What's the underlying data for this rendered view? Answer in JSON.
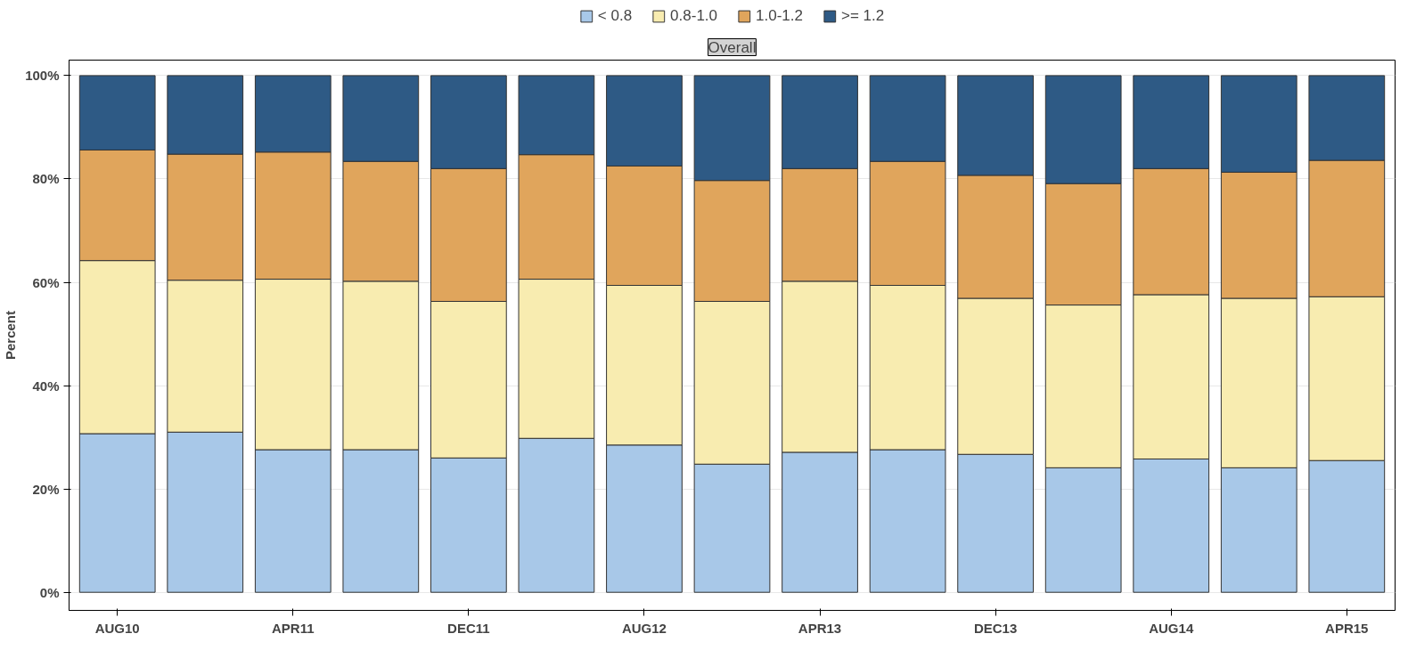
{
  "chart_data": {
    "type": "bar",
    "stacked": true,
    "subtitle": "Overall",
    "ylabel": "Percent",
    "categories": [
      "AUG10",
      null,
      "APR11",
      null,
      "DEC11",
      null,
      "AUG12",
      null,
      "APR13",
      null,
      "DEC13",
      null,
      "AUG14",
      null,
      "APR15"
    ],
    "series": [
      {
        "name": "< 0.8",
        "color": "#a8c8e8",
        "values": [
          30.7,
          31.0,
          27.6,
          27.6,
          26.0,
          29.8,
          28.5,
          24.8,
          27.1,
          27.6,
          26.7,
          24.1,
          25.8,
          24.1,
          25.5
        ]
      },
      {
        "name": "0.8-1.0",
        "color": "#f8ecb0",
        "values": [
          33.5,
          29.4,
          33.0,
          32.6,
          30.3,
          30.8,
          30.9,
          31.5,
          33.1,
          31.8,
          30.2,
          31.5,
          31.8,
          32.8,
          31.7
        ]
      },
      {
        "name": "1.0-1.2",
        "color": "#e0a55c",
        "values": [
          21.4,
          24.4,
          24.6,
          23.2,
          25.7,
          24.1,
          23.1,
          23.4,
          21.8,
          24.0,
          23.8,
          23.5,
          24.4,
          24.4,
          26.4
        ]
      },
      {
        "name": ">= 1.2",
        "color": "#2e5a85",
        "values": [
          14.4,
          15.2,
          14.8,
          16.6,
          18.0,
          15.3,
          17.5,
          20.3,
          18.0,
          16.6,
          19.3,
          20.9,
          18.0,
          18.7,
          16.4
        ]
      }
    ],
    "ylim": [
      -3.5,
      103
    ],
    "yticks": [
      {
        "value": 0,
        "label": "0%"
      },
      {
        "value": 20,
        "label": "20%"
      },
      {
        "value": 40,
        "label": "40%"
      },
      {
        "value": 60,
        "label": "60%"
      },
      {
        "value": 80,
        "label": "80%"
      },
      {
        "value": 100,
        "label": "100%"
      }
    ],
    "grid": "y",
    "legend": "top"
  }
}
